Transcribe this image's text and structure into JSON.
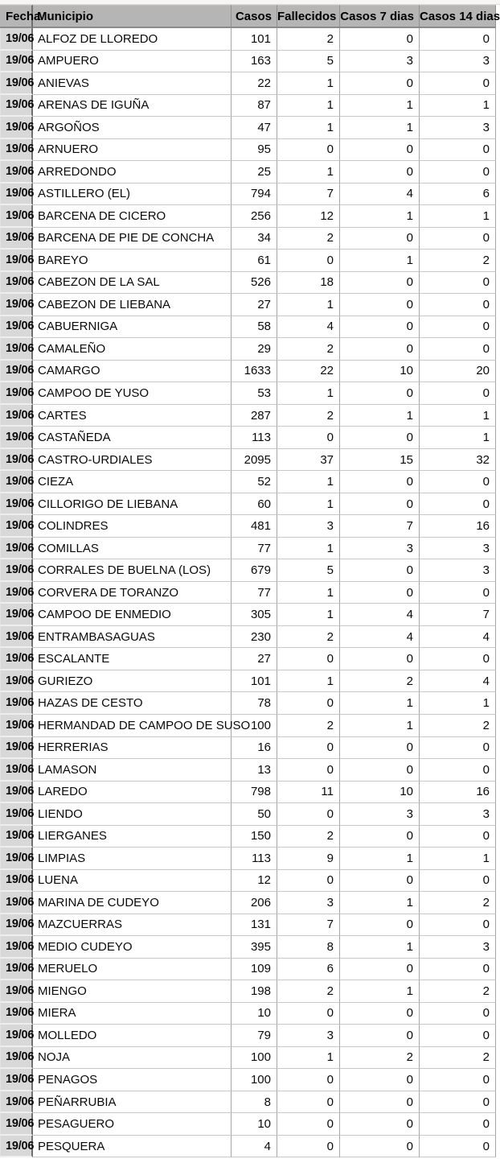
{
  "table": {
    "columns": [
      {
        "key": "fecha",
        "label": "Fecha"
      },
      {
        "key": "municipio",
        "label": "Municipio"
      },
      {
        "key": "casos",
        "label": "Casos"
      },
      {
        "key": "fallecidos",
        "label": "Fallecidos"
      },
      {
        "key": "casos_7_dias",
        "label": "Casos 7 dias"
      },
      {
        "key": "casos_14_dias",
        "label": "Casos 14 dias"
      }
    ],
    "rows": [
      {
        "fecha": "19/06",
        "municipio": "ALFOZ DE LLOREDO",
        "casos": 101,
        "fallecidos": 2,
        "casos_7_dias": 0,
        "casos_14_dias": 0
      },
      {
        "fecha": "19/06",
        "municipio": "AMPUERO",
        "casos": 163,
        "fallecidos": 5,
        "casos_7_dias": 3,
        "casos_14_dias": 3
      },
      {
        "fecha": "19/06",
        "municipio": "ANIEVAS",
        "casos": 22,
        "fallecidos": 1,
        "casos_7_dias": 0,
        "casos_14_dias": 0
      },
      {
        "fecha": "19/06",
        "municipio": "ARENAS DE IGUÑA",
        "casos": 87,
        "fallecidos": 1,
        "casos_7_dias": 1,
        "casos_14_dias": 1
      },
      {
        "fecha": "19/06",
        "municipio": "ARGOÑOS",
        "casos": 47,
        "fallecidos": 1,
        "casos_7_dias": 1,
        "casos_14_dias": 3
      },
      {
        "fecha": "19/06",
        "municipio": "ARNUERO",
        "casos": 95,
        "fallecidos": 0,
        "casos_7_dias": 0,
        "casos_14_dias": 0
      },
      {
        "fecha": "19/06",
        "municipio": "ARREDONDO",
        "casos": 25,
        "fallecidos": 1,
        "casos_7_dias": 0,
        "casos_14_dias": 0
      },
      {
        "fecha": "19/06",
        "municipio": "ASTILLERO (EL)",
        "casos": 794,
        "fallecidos": 7,
        "casos_7_dias": 4,
        "casos_14_dias": 6
      },
      {
        "fecha": "19/06",
        "municipio": "BARCENA DE CICERO",
        "casos": 256,
        "fallecidos": 12,
        "casos_7_dias": 1,
        "casos_14_dias": 1
      },
      {
        "fecha": "19/06",
        "municipio": "BARCENA DE PIE DE CONCHA",
        "casos": 34,
        "fallecidos": 2,
        "casos_7_dias": 0,
        "casos_14_dias": 0
      },
      {
        "fecha": "19/06",
        "municipio": "BAREYO",
        "casos": 61,
        "fallecidos": 0,
        "casos_7_dias": 1,
        "casos_14_dias": 2
      },
      {
        "fecha": "19/06",
        "municipio": "CABEZON DE LA SAL",
        "casos": 526,
        "fallecidos": 18,
        "casos_7_dias": 0,
        "casos_14_dias": 0
      },
      {
        "fecha": "19/06",
        "municipio": "CABEZON DE LIEBANA",
        "casos": 27,
        "fallecidos": 1,
        "casos_7_dias": 0,
        "casos_14_dias": 0
      },
      {
        "fecha": "19/06",
        "municipio": "CABUERNIGA",
        "casos": 58,
        "fallecidos": 4,
        "casos_7_dias": 0,
        "casos_14_dias": 0
      },
      {
        "fecha": "19/06",
        "municipio": "CAMALEÑO",
        "casos": 29,
        "fallecidos": 2,
        "casos_7_dias": 0,
        "casos_14_dias": 0
      },
      {
        "fecha": "19/06",
        "municipio": "CAMARGO",
        "casos": 1633,
        "fallecidos": 22,
        "casos_7_dias": 10,
        "casos_14_dias": 20
      },
      {
        "fecha": "19/06",
        "municipio": "CAMPOO DE YUSO",
        "casos": 53,
        "fallecidos": 1,
        "casos_7_dias": 0,
        "casos_14_dias": 0
      },
      {
        "fecha": "19/06",
        "municipio": "CARTES",
        "casos": 287,
        "fallecidos": 2,
        "casos_7_dias": 1,
        "casos_14_dias": 1
      },
      {
        "fecha": "19/06",
        "municipio": "CASTAÑEDA",
        "casos": 113,
        "fallecidos": 0,
        "casos_7_dias": 0,
        "casos_14_dias": 1
      },
      {
        "fecha": "19/06",
        "municipio": "CASTRO-URDIALES",
        "casos": 2095,
        "fallecidos": 37,
        "casos_7_dias": 15,
        "casos_14_dias": 32
      },
      {
        "fecha": "19/06",
        "municipio": "CIEZA",
        "casos": 52,
        "fallecidos": 1,
        "casos_7_dias": 0,
        "casos_14_dias": 0
      },
      {
        "fecha": "19/06",
        "municipio": "CILLORIGO DE LIEBANA",
        "casos": 60,
        "fallecidos": 1,
        "casos_7_dias": 0,
        "casos_14_dias": 0
      },
      {
        "fecha": "19/06",
        "municipio": "COLINDRES",
        "casos": 481,
        "fallecidos": 3,
        "casos_7_dias": 7,
        "casos_14_dias": 16
      },
      {
        "fecha": "19/06",
        "municipio": "COMILLAS",
        "casos": 77,
        "fallecidos": 1,
        "casos_7_dias": 3,
        "casos_14_dias": 3
      },
      {
        "fecha": "19/06",
        "municipio": "CORRALES DE BUELNA (LOS)",
        "casos": 679,
        "fallecidos": 5,
        "casos_7_dias": 0,
        "casos_14_dias": 3
      },
      {
        "fecha": "19/06",
        "municipio": "CORVERA DE TORANZO",
        "casos": 77,
        "fallecidos": 1,
        "casos_7_dias": 0,
        "casos_14_dias": 0
      },
      {
        "fecha": "19/06",
        "municipio": "CAMPOO DE ENMEDIO",
        "casos": 305,
        "fallecidos": 1,
        "casos_7_dias": 4,
        "casos_14_dias": 7
      },
      {
        "fecha": "19/06",
        "municipio": "ENTRAMBASAGUAS",
        "casos": 230,
        "fallecidos": 2,
        "casos_7_dias": 4,
        "casos_14_dias": 4
      },
      {
        "fecha": "19/06",
        "municipio": "ESCALANTE",
        "casos": 27,
        "fallecidos": 0,
        "casos_7_dias": 0,
        "casos_14_dias": 0
      },
      {
        "fecha": "19/06",
        "municipio": "GURIEZO",
        "casos": 101,
        "fallecidos": 1,
        "casos_7_dias": 2,
        "casos_14_dias": 4
      },
      {
        "fecha": "19/06",
        "municipio": "HAZAS DE CESTO",
        "casos": 78,
        "fallecidos": 0,
        "casos_7_dias": 1,
        "casos_14_dias": 1
      },
      {
        "fecha": "19/06",
        "municipio": "HERMANDAD DE CAMPOO DE SUSO",
        "casos": 100,
        "fallecidos": 2,
        "casos_7_dias": 1,
        "casos_14_dias": 2
      },
      {
        "fecha": "19/06",
        "municipio": "HERRERIAS",
        "casos": 16,
        "fallecidos": 0,
        "casos_7_dias": 0,
        "casos_14_dias": 0
      },
      {
        "fecha": "19/06",
        "municipio": "LAMASON",
        "casos": 13,
        "fallecidos": 0,
        "casos_7_dias": 0,
        "casos_14_dias": 0
      },
      {
        "fecha": "19/06",
        "municipio": "LAREDO",
        "casos": 798,
        "fallecidos": 11,
        "casos_7_dias": 10,
        "casos_14_dias": 16
      },
      {
        "fecha": "19/06",
        "municipio": "LIENDO",
        "casos": 50,
        "fallecidos": 0,
        "casos_7_dias": 3,
        "casos_14_dias": 3
      },
      {
        "fecha": "19/06",
        "municipio": "LIERGANES",
        "casos": 150,
        "fallecidos": 2,
        "casos_7_dias": 0,
        "casos_14_dias": 0
      },
      {
        "fecha": "19/06",
        "municipio": "LIMPIAS",
        "casos": 113,
        "fallecidos": 9,
        "casos_7_dias": 1,
        "casos_14_dias": 1
      },
      {
        "fecha": "19/06",
        "municipio": "LUENA",
        "casos": 12,
        "fallecidos": 0,
        "casos_7_dias": 0,
        "casos_14_dias": 0
      },
      {
        "fecha": "19/06",
        "municipio": "MARINA DE CUDEYO",
        "casos": 206,
        "fallecidos": 3,
        "casos_7_dias": 1,
        "casos_14_dias": 2
      },
      {
        "fecha": "19/06",
        "municipio": "MAZCUERRAS",
        "casos": 131,
        "fallecidos": 7,
        "casos_7_dias": 0,
        "casos_14_dias": 0
      },
      {
        "fecha": "19/06",
        "municipio": "MEDIO CUDEYO",
        "casos": 395,
        "fallecidos": 8,
        "casos_7_dias": 1,
        "casos_14_dias": 3
      },
      {
        "fecha": "19/06",
        "municipio": "MERUELO",
        "casos": 109,
        "fallecidos": 6,
        "casos_7_dias": 0,
        "casos_14_dias": 0
      },
      {
        "fecha": "19/06",
        "municipio": "MIENGO",
        "casos": 198,
        "fallecidos": 2,
        "casos_7_dias": 1,
        "casos_14_dias": 2
      },
      {
        "fecha": "19/06",
        "municipio": "MIERA",
        "casos": 10,
        "fallecidos": 0,
        "casos_7_dias": 0,
        "casos_14_dias": 0
      },
      {
        "fecha": "19/06",
        "municipio": "MOLLEDO",
        "casos": 79,
        "fallecidos": 3,
        "casos_7_dias": 0,
        "casos_14_dias": 0
      },
      {
        "fecha": "19/06",
        "municipio": "NOJA",
        "casos": 100,
        "fallecidos": 1,
        "casos_7_dias": 2,
        "casos_14_dias": 2
      },
      {
        "fecha": "19/06",
        "municipio": "PENAGOS",
        "casos": 100,
        "fallecidos": 0,
        "casos_7_dias": 0,
        "casos_14_dias": 0
      },
      {
        "fecha": "19/06",
        "municipio": "PEÑARRUBIA",
        "casos": 8,
        "fallecidos": 0,
        "casos_7_dias": 0,
        "casos_14_dias": 0
      },
      {
        "fecha": "19/06",
        "municipio": "PESAGUERO",
        "casos": 10,
        "fallecidos": 0,
        "casos_7_dias": 0,
        "casos_14_dias": 0
      },
      {
        "fecha": "19/06",
        "municipio": "PESQUERA",
        "casos": 4,
        "fallecidos": 0,
        "casos_7_dias": 0,
        "casos_14_dias": 0
      }
    ]
  },
  "colors": {
    "header_background": "#b5b5b5",
    "date_cell_background": "#d8d8d8",
    "row_background": "#ffffff",
    "grid_line": "#a6a6a6",
    "text": "#0a0a0a"
  }
}
